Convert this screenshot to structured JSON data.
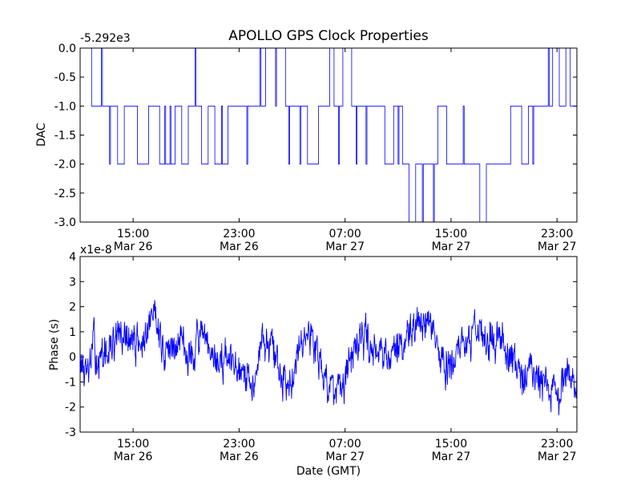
{
  "figure": {
    "title": "APOLLO GPS Clock Properties",
    "xlabel": "Date (GMT)"
  },
  "chart_data": [
    {
      "type": "line",
      "title": "APOLLO GPS Clock Properties",
      "ylabel": "DAC",
      "offset_label": "-5.292e3",
      "ylim": [
        -3.0,
        0.0
      ],
      "y_ticks": [
        "0.0",
        "-0.5",
        "-1.0",
        "-1.5",
        "-2.0",
        "-2.5",
        "-3.0"
      ],
      "xlim": [
        "Mar 26 11:00",
        "Mar 28 00:30"
      ],
      "x_ticks": [
        {
          "time": "15:00",
          "date": "Mar 26"
        },
        {
          "time": "23:00",
          "date": "Mar 26"
        },
        {
          "time": "07:00",
          "date": "Mar 27"
        },
        {
          "time": "15:00",
          "date": "Mar 27"
        },
        {
          "time": "23:00",
          "date": "Mar 27"
        }
      ],
      "color": "#0000ff",
      "series": [
        {
          "x": [
            "Mar 26 11:20",
            "Mar 26 11:52",
            "Mar 26 12:00",
            "Mar 26 13:50",
            "Mar 26 14:20",
            "Mar 26 15:20",
            "Mar 26 16:10",
            "Mar 26 17:00",
            "Mar 26 18:10",
            "Mar 26 18:40",
            "Mar 26 19:10",
            "Mar 26 20:10",
            "Mar 26 20:40",
            "Mar 26 21:10",
            "Mar 26 22:10",
            "Mar 26 23:00",
            "Mar 27 00:10",
            "Mar 27 01:00",
            "Mar 27 02:30",
            "Mar 27 03:00",
            "Mar 27 04:10",
            "Mar 27 05:00",
            "Mar 27 05:50",
            "Mar 27 06:10",
            "Mar 27 06:50",
            "Mar 27 07:30",
            "Mar 27 08:10",
            "Mar 27 09:00",
            "Mar 27 10:00",
            "Mar 27 10:40",
            "Mar 27 11:20",
            "Mar 27 11:50",
            "Mar 27 12:20",
            "Mar 27 13:20",
            "Mar 27 14:00",
            "Mar 27 14:40",
            "Mar 27 15:30",
            "Mar 27 16:20",
            "Mar 27 17:10",
            "Mar 27 17:40",
            "Mar 27 18:20",
            "Mar 27 19:30",
            "Mar 27 20:20",
            "Mar 27 20:50",
            "Mar 27 21:30",
            "Mar 27 22:00",
            "Mar 27 22:40",
            "Mar 27 23:10",
            "Mar 27 23:40",
            "Mar 28 00:00"
          ],
          "y": [
            0,
            -1,
            -1,
            -2,
            -1,
            -2,
            -1,
            -2,
            -1,
            -2,
            -1,
            -2,
            -1,
            -2,
            -1,
            -1,
            -1,
            0,
            -1,
            -1,
            -2,
            -1,
            0,
            -1,
            0,
            -1,
            -1,
            -1,
            -2,
            -1,
            -2,
            -3,
            -2,
            -2,
            -1,
            -2,
            -2,
            -2,
            -3,
            -2,
            -2,
            -1,
            -2,
            -1,
            -1,
            -1,
            0,
            -1,
            0,
            -1
          ]
        }
      ]
    },
    {
      "type": "line",
      "ylabel": "Phase (s)",
      "offset_label": "x1e-8",
      "ylim": [
        -3,
        4
      ],
      "y_ticks": [
        "4",
        "3",
        "2",
        "1",
        "0",
        "-1",
        "-2",
        "-3"
      ],
      "xlabel": "Date (GMT)",
      "xlim": [
        "Mar 26 11:00",
        "Mar 28 00:30"
      ],
      "x_ticks": [
        {
          "time": "15:00",
          "date": "Mar 26"
        },
        {
          "time": "23:00",
          "date": "Mar 26"
        },
        {
          "time": "07:00",
          "date": "Mar 27"
        },
        {
          "time": "15:00",
          "date": "Mar 27"
        },
        {
          "time": "23:00",
          "date": "Mar 27"
        }
      ],
      "color": "#0000ff",
      "series": [
        {
          "x": [
            "Mar 26 11:00",
            "Mar 26 11:30",
            "Mar 26 12:00",
            "Mar 26 12:30",
            "Mar 26 13:00",
            "Mar 26 14:00",
            "Mar 26 15:00",
            "Mar 26 16:00",
            "Mar 26 16:40",
            "Mar 26 17:10",
            "Mar 26 18:00",
            "Mar 26 18:40",
            "Mar 26 19:20",
            "Mar 26 20:00",
            "Mar 26 21:00",
            "Mar 26 22:00",
            "Mar 26 23:00",
            "Mar 27 00:00",
            "Mar 27 00:40",
            "Mar 27 01:30",
            "Mar 27 02:20",
            "Mar 27 03:00",
            "Mar 27 03:40",
            "Mar 27 04:30",
            "Mar 27 05:30",
            "Mar 27 06:30",
            "Mar 27 07:00",
            "Mar 27 07:40",
            "Mar 27 08:30",
            "Mar 27 09:30",
            "Mar 27 10:30",
            "Mar 27 11:00",
            "Mar 27 11:40",
            "Mar 27 12:20",
            "Mar 27 13:00",
            "Mar 27 13:40",
            "Mar 27 14:20",
            "Mar 27 15:00",
            "Mar 27 16:00",
            "Mar 27 17:00",
            "Mar 27 17:40",
            "Mar 27 18:20",
            "Mar 27 19:00",
            "Mar 27 19:40",
            "Mar 27 20:20",
            "Mar 27 21:00",
            "Mar 27 21:40",
            "Mar 27 22:20",
            "Mar 27 23:00",
            "Mar 27 23:40",
            "Mar 28 00:20"
          ],
          "y": [
            0.0,
            -1.0,
            0.5,
            -0.3,
            0.2,
            0.8,
            0.6,
            0.5,
            2.2,
            0.3,
            0.2,
            0.9,
            -0.2,
            1.0,
            -0.3,
            0.0,
            -0.8,
            -1.2,
            0.8,
            0.4,
            -1.2,
            -0.5,
            0.9,
            0.8,
            -0.8,
            -1.6,
            -1.3,
            0.3,
            0.7,
            0.4,
            0.1,
            0.4,
            0.4,
            1.2,
            1.5,
            0.8,
            -0.4,
            -0.2,
            0.5,
            1.3,
            0.6,
            0.8,
            0.6,
            -0.2,
            -0.7,
            -0.6,
            -1.0,
            -1.4,
            -1.8,
            -0.8,
            -0.7
          ]
        }
      ]
    }
  ]
}
